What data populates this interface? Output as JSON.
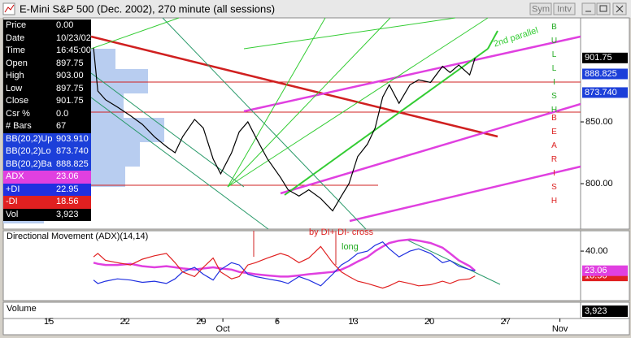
{
  "window": {
    "title": "E-Mini S&P 500 (Dec. 2002), 270 minute (all sessions)",
    "buttons": [
      "Sym",
      "Intv"
    ]
  },
  "data_window": [
    {
      "label": "Price",
      "value": "0.00",
      "bg": "#000000"
    },
    {
      "label": "Date",
      "value": "10/23/02",
      "bg": "#000000"
    },
    {
      "label": "Time",
      "value": "16:45:00",
      "bg": "#000000"
    },
    {
      "label": "Open",
      "value": "897.75",
      "bg": "#000000"
    },
    {
      "label": "High",
      "value": "903.00",
      "bg": "#000000"
    },
    {
      "label": "Low",
      "value": "897.75",
      "bg": "#000000"
    },
    {
      "label": "Close",
      "value": "901.75",
      "bg": "#000000"
    },
    {
      "label": "Csr %",
      "value": "0.0",
      "bg": "#000000"
    },
    {
      "label": "# Bars",
      "value": "67",
      "bg": "#000000"
    },
    {
      "label": "BB(20,2)Up",
      "value": "903.910",
      "bg": "#1c3fd9"
    },
    {
      "label": "BB(20,2)Lo",
      "value": "873.740",
      "bg": "#1c3fd9"
    },
    {
      "label": "BB(20,2)Ba",
      "value": "888.825",
      "bg": "#1c3fd9"
    },
    {
      "label": "ADX",
      "value": "23.06",
      "bg": "#e040e0"
    },
    {
      "label": "+DI",
      "value": "22.95",
      "bg": "#2030e0"
    },
    {
      "label": "-DI",
      "value": "18.56",
      "bg": "#e02020"
    },
    {
      "label": "Vol",
      "value": "3,923",
      "bg": "#000000"
    }
  ],
  "chart_data": [
    {
      "type": "line",
      "x": [
        19.1,
        19.5,
        20.2,
        21.3,
        22.5,
        23.6,
        24.7,
        25.8,
        26.6,
        27.3,
        28.4,
        29.2,
        30.1,
        30.8,
        31.8,
        32.5,
        33.3,
        34.0,
        35.1,
        36.3,
        37.0,
        38.0,
        38.9,
        40.0,
        41.1,
        41.9,
        42.6,
        43.4,
        44.3,
        45.0,
        45.7,
        46.3,
        47.2,
        48.2,
        49.0,
        50.1,
        51.2,
        51.9,
        52.7,
        53.7,
        54.2
      ],
      "series": [
        {
          "color": "#000000",
          "values": [
            910,
            875,
            868,
            862,
            855,
            848,
            838,
            830,
            825,
            838,
            852,
            845,
            820,
            808,
            825,
            842,
            850,
            838,
            820,
            805,
            795,
            790,
            795,
            788,
            778,
            790,
            800,
            822,
            832,
            845,
            870,
            880,
            865,
            880,
            884,
            882,
            895,
            890,
            896,
            888,
            901.75
          ]
        }
      ],
      "xlim": [
        10.8,
        63.9
      ],
      "xticks": [
        15,
        22,
        29,
        {
          "value": 31,
          "label": "Oct"
        },
        {
          "value": 36,
          "label": "6"
        },
        {
          "value": 43,
          "label": "13"
        },
        {
          "value": 50,
          "label": "20"
        },
        {
          "value": 57,
          "label": "27"
        },
        {
          "value": 62,
          "label": "Nov"
        }
      ],
      "ylim": [
        763.2,
        934.2
      ],
      "yticks": [
        {
          "value": 850,
          "label": "850.00"
        },
        {
          "value": 800,
          "label": "800.00"
        }
      ],
      "markers": [
        {
          "value": 901.75,
          "label": "901.75",
          "color": "#000000"
        },
        {
          "value": 888.825,
          "label": "888.825",
          "color": "#1c3fd9"
        },
        {
          "value": 873.74,
          "label": "873.740",
          "color": "#1c3fd9"
        }
      ],
      "annotations": [
        {
          "text": "2nd parallel",
          "color": "#33cc33"
        },
        {
          "text": "BULLISH",
          "color": "#22aa22"
        },
        {
          "text": "BEARISH",
          "color": "#dd2222"
        }
      ]
    },
    {
      "type": "line",
      "title": "Directional Movement (ADX)(14,14)",
      "series": [
        {
          "color": "#e040e0",
          "values": [
            30,
            29,
            28,
            28,
            29,
            27,
            26,
            27,
            26,
            25,
            24,
            25,
            26,
            25,
            24,
            22,
            21,
            20,
            19,
            18,
            18,
            19,
            20,
            21,
            22,
            24,
            27,
            31,
            35,
            40,
            44,
            47,
            49,
            50,
            49,
            47,
            43,
            38,
            32,
            27,
            23.06
          ]
        },
        {
          "color": "#2030e0",
          "values": [
            15,
            12,
            14,
            16,
            15,
            13,
            14,
            12,
            16,
            22,
            26,
            20,
            15,
            24,
            30,
            28,
            20,
            18,
            16,
            14,
            12,
            18,
            15,
            10,
            20,
            28,
            32,
            38,
            40,
            45,
            48,
            42,
            35,
            40,
            42,
            38,
            30,
            32,
            27,
            24,
            22.95
          ]
        },
        {
          "color": "#e02020",
          "values": [
            35,
            38,
            32,
            30,
            28,
            33,
            36,
            38,
            30,
            22,
            18,
            26,
            34,
            22,
            16,
            18,
            28,
            30,
            34,
            38,
            36,
            30,
            34,
            44,
            30,
            22,
            18,
            14,
            12,
            10,
            8,
            10,
            14,
            12,
            10,
            11,
            14,
            12,
            15,
            16,
            18.56
          ]
        }
      ],
      "ylim": [
        -2.8,
        57.6
      ],
      "yticks": [
        {
          "value": 40,
          "label": "40.00"
        }
      ],
      "markers": [
        {
          "value": 18.56,
          "label": "18.56",
          "color": "#e02020"
        },
        {
          "value": 23.06,
          "label": "23.06",
          "color": "#e040e0"
        }
      ],
      "annotations": [
        {
          "text": "by DI+ DI- cross",
          "color": "#dd2222"
        },
        {
          "text": "long",
          "color": "#22aa22"
        }
      ]
    },
    {
      "type": "volume",
      "title": "Volume",
      "last_label": "3,923"
    }
  ]
}
